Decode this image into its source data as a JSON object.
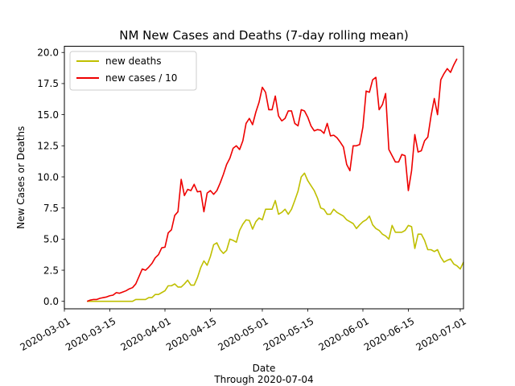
{
  "chart_data": {
    "type": "line",
    "title": "NM New Cases and Deaths (7-day rolling mean)",
    "xlabel": "Date",
    "xlabel_sub": "Through 2020-07-04",
    "ylabel": "New Cases or Deaths",
    "x_start": "2020-03-08",
    "x_step_days": 1,
    "xlim": [
      "2020-03-01",
      "2020-07-02"
    ],
    "ylim": [
      -0.6,
      20.5
    ],
    "x_ticks": [
      "2020-03-01",
      "2020-03-15",
      "2020-04-01",
      "2020-04-15",
      "2020-05-01",
      "2020-05-15",
      "2020-06-01",
      "2020-06-15",
      "2020-07-01"
    ],
    "y_ticks": [
      0.0,
      2.5,
      5.0,
      7.5,
      10.0,
      12.5,
      15.0,
      17.5,
      20.0
    ],
    "legend_position": "top-left",
    "grid": false,
    "series": [
      {
        "name": "new deaths",
        "color": "#bfbf00",
        "values": [
          0,
          0,
          0,
          0,
          0,
          0,
          0,
          0,
          0,
          0,
          0,
          0,
          0,
          0,
          0,
          0.15,
          0.15,
          0.15,
          0.15,
          0.3,
          0.3,
          0.55,
          0.55,
          0.7,
          0.85,
          1.25,
          1.25,
          1.4,
          1.15,
          1.15,
          1.4,
          1.7,
          1.3,
          1.3,
          1.9,
          2.7,
          3.25,
          2.9,
          3.6,
          4.55,
          4.7,
          4.15,
          3.85,
          4.1,
          5.0,
          4.9,
          4.75,
          5.7,
          6.2,
          6.55,
          6.5,
          5.8,
          6.4,
          6.7,
          6.55,
          7.4,
          7.4,
          7.4,
          8.1,
          7.0,
          7.15,
          7.4,
          7.0,
          7.4,
          8.1,
          8.85,
          10.0,
          10.3,
          9.7,
          9.3,
          8.9,
          8.3,
          7.5,
          7.4,
          7.0,
          7.0,
          7.4,
          7.15,
          7.0,
          6.85,
          6.55,
          6.4,
          6.25,
          5.85,
          6.15,
          6.4,
          6.55,
          6.85,
          6.15,
          5.85,
          5.7,
          5.4,
          5.25,
          5.0,
          6.1,
          5.55,
          5.55,
          5.55,
          5.7,
          6.1,
          6.0,
          4.25,
          5.4,
          5.4,
          4.9,
          4.15,
          4.15,
          4.0,
          4.15,
          3.55,
          3.15,
          3.3,
          3.4,
          3.0,
          2.85,
          2.6,
          3.15
        ]
      },
      {
        "name": "new cases / 10",
        "color": "#ee0000",
        "values": [
          0,
          0.1,
          0.15,
          0.15,
          0.25,
          0.3,
          0.35,
          0.45,
          0.5,
          0.7,
          0.65,
          0.75,
          0.85,
          1.0,
          1.1,
          1.4,
          2.0,
          2.6,
          2.5,
          2.75,
          3.05,
          3.5,
          3.75,
          4.3,
          4.35,
          5.5,
          5.75,
          6.9,
          7.2,
          9.8,
          8.5,
          9.0,
          8.9,
          9.4,
          8.8,
          8.85,
          7.2,
          8.7,
          8.9,
          8.6,
          8.9,
          9.5,
          10.2,
          11.0,
          11.5,
          12.3,
          12.5,
          12.2,
          12.9,
          14.3,
          14.7,
          14.2,
          15.2,
          16.0,
          17.2,
          16.8,
          15.4,
          15.4,
          16.5,
          14.9,
          14.5,
          14.7,
          15.3,
          15.3,
          14.3,
          14.1,
          15.4,
          15.3,
          14.8,
          14.1,
          13.7,
          13.8,
          13.75,
          13.5,
          14.3,
          13.3,
          13.35,
          13.15,
          12.8,
          12.4,
          11.0,
          10.5,
          12.5,
          12.5,
          12.6,
          14.0,
          16.9,
          16.8,
          17.8,
          18.0,
          15.4,
          15.8,
          16.7,
          12.2,
          11.7,
          11.2,
          11.2,
          11.8,
          11.7,
          8.9,
          10.5,
          13.4,
          12.0,
          12.1,
          12.9,
          13.2,
          14.9,
          16.3,
          15.0,
          17.8,
          18.3,
          18.7,
          18.4,
          19.0,
          19.5
        ]
      }
    ]
  }
}
